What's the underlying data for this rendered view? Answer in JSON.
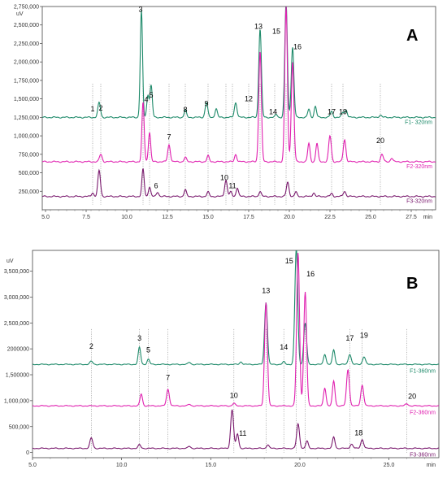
{
  "chart_data": [
    {
      "type": "line",
      "panel": "A",
      "ylabel": "uV",
      "xlabel": "min",
      "xlim": [
        4.8,
        29.0
      ],
      "ylim": [
        0,
        2750000
      ],
      "x_ticks": [
        5.0,
        7.5,
        10.0,
        12.5,
        15.0,
        17.5,
        20.0,
        22.5,
        25.0,
        27.5
      ],
      "x_tick_labels": [
        "5.0",
        "7.5",
        "10.0",
        "12.5",
        "15.0",
        "17.5",
        "20.0",
        "22.5",
        "25.0",
        "27.5"
      ],
      "y_ticks": [
        250000,
        500000,
        750000,
        1000000,
        1250000,
        1500000,
        1750000,
        2000000,
        2250000,
        2500000,
        2750000
      ],
      "y_tick_labels": [
        "250,000",
        "500,000",
        "750,000",
        "1,000,000",
        "1,250,000",
        "1,500,000",
        "1,750,000",
        "2,000,000",
        "2,250,000",
        "2,500,000",
        "2,750,000"
      ],
      "series": [
        {
          "name": "F1- 320nm",
          "color": "#1e8a6a",
          "baseline": 1250000,
          "peaks": [
            [
              8.3,
              200000,
              0.08
            ],
            [
              10.9,
              1450000,
              0.07
            ],
            [
              11.3,
              300000,
              0.07
            ],
            [
              11.5,
              430000,
              0.07
            ],
            [
              13.6,
              100000,
              0.07
            ],
            [
              14.9,
              200000,
              0.08
            ],
            [
              15.5,
              120000,
              0.07
            ],
            [
              16.7,
              200000,
              0.08
            ],
            [
              18.2,
              1200000,
              0.08
            ],
            [
              19.2,
              40000,
              0.07
            ],
            [
              19.8,
              1550000,
              0.08
            ],
            [
              20.2,
              950000,
              0.08
            ],
            [
              21.2,
              110000,
              0.07
            ],
            [
              21.6,
              150000,
              0.07
            ],
            [
              22.6,
              80000,
              0.08
            ],
            [
              23.3,
              70000,
              0.08
            ],
            [
              23.5,
              100000,
              0.07
            ],
            [
              25.6,
              30000,
              0.08
            ]
          ]
        },
        {
          "name": "F2-320nm",
          "color": "#e020b0",
          "baseline": 650000,
          "peaks": [
            [
              8.4,
              100000,
              0.08
            ],
            [
              11.0,
              800000,
              0.07
            ],
            [
              11.4,
              400000,
              0.07
            ],
            [
              12.6,
              230000,
              0.08
            ],
            [
              13.6,
              60000,
              0.07
            ],
            [
              15.0,
              80000,
              0.07
            ],
            [
              16.7,
              100000,
              0.07
            ],
            [
              18.2,
              1500000,
              0.08
            ],
            [
              19.8,
              2100000,
              0.08
            ],
            [
              20.2,
              1350000,
              0.08
            ],
            [
              21.2,
              250000,
              0.07
            ],
            [
              21.7,
              250000,
              0.07
            ],
            [
              22.5,
              350000,
              0.08
            ],
            [
              23.4,
              300000,
              0.08
            ],
            [
              25.7,
              100000,
              0.08
            ],
            [
              26.3,
              50000,
              0.07
            ]
          ]
        },
        {
          "name": "F3-320nm",
          "color": "#7a1a6e",
          "baseline": 180000,
          "peaks": [
            [
              7.9,
              50000,
              0.07
            ],
            [
              8.3,
              350000,
              0.08
            ],
            [
              11.0,
              370000,
              0.07
            ],
            [
              11.4,
              130000,
              0.07
            ],
            [
              11.9,
              60000,
              0.07
            ],
            [
              13.6,
              90000,
              0.07
            ],
            [
              15.0,
              60000,
              0.07
            ],
            [
              16.1,
              220000,
              0.08
            ],
            [
              16.4,
              60000,
              0.07
            ],
            [
              16.8,
              120000,
              0.07
            ],
            [
              18.2,
              70000,
              0.07
            ],
            [
              19.9,
              190000,
              0.08
            ],
            [
              20.4,
              60000,
              0.07
            ],
            [
              21.5,
              50000,
              0.07
            ],
            [
              22.6,
              40000,
              0.07
            ],
            [
              23.4,
              70000,
              0.08
            ]
          ]
        }
      ],
      "peak_labels": [
        {
          "text": "1",
          "x": 7.9,
          "y": 1330000
        },
        {
          "text": "2",
          "x": 8.4,
          "y": 1340000
        },
        {
          "text": "3",
          "x": 10.85,
          "y": 2680000
        },
        {
          "text": "4",
          "x": 11.2,
          "y": 1460000
        },
        {
          "text": "5",
          "x": 11.5,
          "y": 1520000
        },
        {
          "text": "6",
          "x": 11.8,
          "y": 290000
        },
        {
          "text": "7",
          "x": 12.6,
          "y": 950000
        },
        {
          "text": "8",
          "x": 13.6,
          "y": 1320000
        },
        {
          "text": "9",
          "x": 14.9,
          "y": 1400000
        },
        {
          "text": "10",
          "x": 16.0,
          "y": 400000
        },
        {
          "text": "11",
          "x": 16.5,
          "y": 290000
        },
        {
          "text": "12",
          "x": 17.5,
          "y": 1470000
        },
        {
          "text": "13",
          "x": 18.1,
          "y": 2450000
        },
        {
          "text": "14",
          "x": 19.0,
          "y": 1290000
        },
        {
          "text": "15",
          "x": 19.2,
          "y": 2380000
        },
        {
          "text": "16",
          "x": 20.5,
          "y": 2170000
        },
        {
          "text": "17",
          "x": 22.6,
          "y": 1290000
        },
        {
          "text": "19",
          "x": 23.3,
          "y": 1290000
        },
        {
          "text": "20",
          "x": 25.6,
          "y": 900000
        }
      ],
      "guides": [
        7.9,
        8.4,
        11.0,
        11.4,
        12.6,
        13.6,
        15.0,
        16.1,
        16.5,
        17.5,
        18.2,
        19.1,
        19.8,
        20.3,
        22.6,
        23.3,
        25.6
      ],
      "grid": false
    },
    {
      "type": "line",
      "panel": "B",
      "ylabel": "uV",
      "xlabel": "min",
      "xlim": [
        5.0,
        27.8
      ],
      "ylim": [
        -100000,
        3900000
      ],
      "x_ticks": [
        5.0,
        10.0,
        15.0,
        20.0,
        25.0
      ],
      "x_tick_labels": [
        "5.0",
        "10.0",
        "15.0",
        "20.0",
        "25.0"
      ],
      "y_ticks": [
        0,
        500000,
        1000000,
        1500000,
        2000000,
        2500000,
        3000000,
        3500000
      ],
      "y_tick_labels": [
        "0",
        "500,000",
        "1,000,000",
        "1,500000",
        "2000000",
        "2,500,000",
        "3,000,000",
        "3,500,000"
      ],
      "series": [
        {
          "name": "F1-360nm",
          "color": "#1e8a6a",
          "baseline": 1700000,
          "peaks": [
            [
              8.3,
              60000,
              0.08
            ],
            [
              11.0,
              330000,
              0.07
            ],
            [
              11.5,
              100000,
              0.07
            ],
            [
              13.8,
              40000,
              0.07
            ],
            [
              16.7,
              50000,
              0.07
            ],
            [
              18.1,
              1200000,
              0.08
            ],
            [
              19.1,
              50000,
              0.07
            ],
            [
              19.8,
              2250000,
              0.08
            ],
            [
              20.3,
              800000,
              0.08
            ],
            [
              21.4,
              200000,
              0.07
            ],
            [
              21.9,
              280000,
              0.07
            ],
            [
              22.8,
              200000,
              0.08
            ],
            [
              23.6,
              150000,
              0.08
            ]
          ]
        },
        {
          "name": "F2-360nm",
          "color": "#e020b0",
          "baseline": 900000,
          "peaks": [
            [
              11.1,
              230000,
              0.07
            ],
            [
              12.6,
              320000,
              0.08
            ],
            [
              13.8,
              30000,
              0.07
            ],
            [
              16.3,
              50000,
              0.07
            ],
            [
              18.1,
              2000000,
              0.08
            ],
            [
              19.9,
              2950000,
              0.08
            ],
            [
              20.3,
              2200000,
              0.08
            ],
            [
              21.4,
              350000,
              0.07
            ],
            [
              21.9,
              480000,
              0.07
            ],
            [
              22.7,
              700000,
              0.08
            ],
            [
              23.5,
              400000,
              0.08
            ],
            [
              26.0,
              40000,
              0.08
            ]
          ]
        },
        {
          "name": "F3-360nm",
          "color": "#7a1a6e",
          "baseline": 80000,
          "peaks": [
            [
              8.3,
              200000,
              0.08
            ],
            [
              11.0,
              70000,
              0.07
            ],
            [
              13.8,
              40000,
              0.07
            ],
            [
              16.2,
              750000,
              0.08
            ],
            [
              16.5,
              280000,
              0.07
            ],
            [
              18.2,
              70000,
              0.07
            ],
            [
              19.9,
              470000,
              0.08
            ],
            [
              20.4,
              140000,
              0.07
            ],
            [
              21.9,
              220000,
              0.07
            ],
            [
              22.9,
              80000,
              0.08
            ],
            [
              23.5,
              170000,
              0.08
            ]
          ]
        }
      ],
      "peak_labels": [
        {
          "text": "2",
          "x": 8.3,
          "y": 2000000
        },
        {
          "text": "3",
          "x": 11.0,
          "y": 2160000
        },
        {
          "text": "5",
          "x": 11.5,
          "y": 1930000
        },
        {
          "text": "7",
          "x": 12.6,
          "y": 1400000
        },
        {
          "text": "10",
          "x": 16.3,
          "y": 1050000
        },
        {
          "text": "11",
          "x": 16.8,
          "y": 320000
        },
        {
          "text": "13",
          "x": 18.1,
          "y": 3080000
        },
        {
          "text": "14",
          "x": 19.1,
          "y": 1990000
        },
        {
          "text": "15",
          "x": 19.4,
          "y": 3650000
        },
        {
          "text": "16",
          "x": 20.6,
          "y": 3400000
        },
        {
          "text": "17",
          "x": 22.8,
          "y": 2160000
        },
        {
          "text": "18",
          "x": 23.3,
          "y": 330000
        },
        {
          "text": "19",
          "x": 23.6,
          "y": 2210000
        },
        {
          "text": "20",
          "x": 26.3,
          "y": 1040000
        }
      ],
      "guides": [
        8.3,
        11.0,
        11.5,
        12.6,
        16.3,
        18.1,
        19.1,
        19.8,
        20.3,
        22.8,
        23.5,
        26.0
      ],
      "grid": false
    }
  ]
}
